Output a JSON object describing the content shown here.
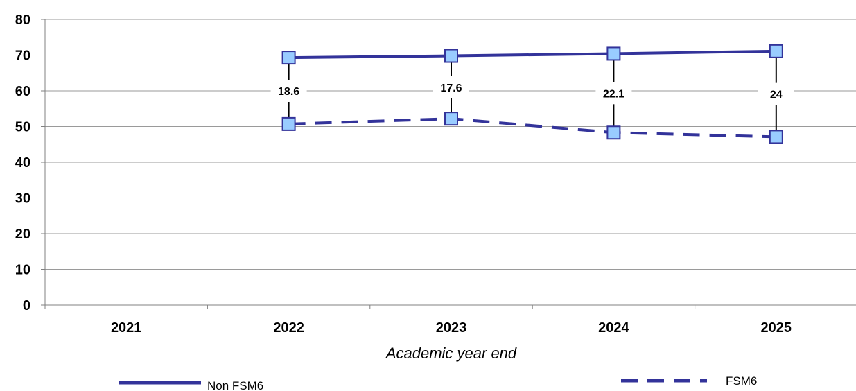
{
  "chart_data": {
    "type": "line",
    "categories": [
      "2021",
      "2022",
      "2023",
      "2024",
      "2025"
    ],
    "series": [
      {
        "name": "Non FSM6",
        "values": [
          null,
          69.3,
          69.8,
          70.4,
          71.1
        ],
        "style": "solid",
        "color": "#33339A"
      },
      {
        "name": "FSM6",
        "values": [
          null,
          50.7,
          52.2,
          48.3,
          47.1
        ],
        "style": "dashed",
        "color": "#33339A"
      }
    ],
    "gap_labels": [
      "",
      "18.6",
      "17.6",
      "22.1",
      "24"
    ],
    "xlabel": "Academic year end",
    "ylabel": "",
    "ylim": [
      0,
      80
    ],
    "yticks": [
      0,
      10,
      20,
      30,
      40,
      50,
      60,
      70,
      80
    ],
    "grid": true,
    "legend_position": "bottom",
    "marker_fill": "#99CCFF",
    "marker_stroke": "#33339A"
  }
}
